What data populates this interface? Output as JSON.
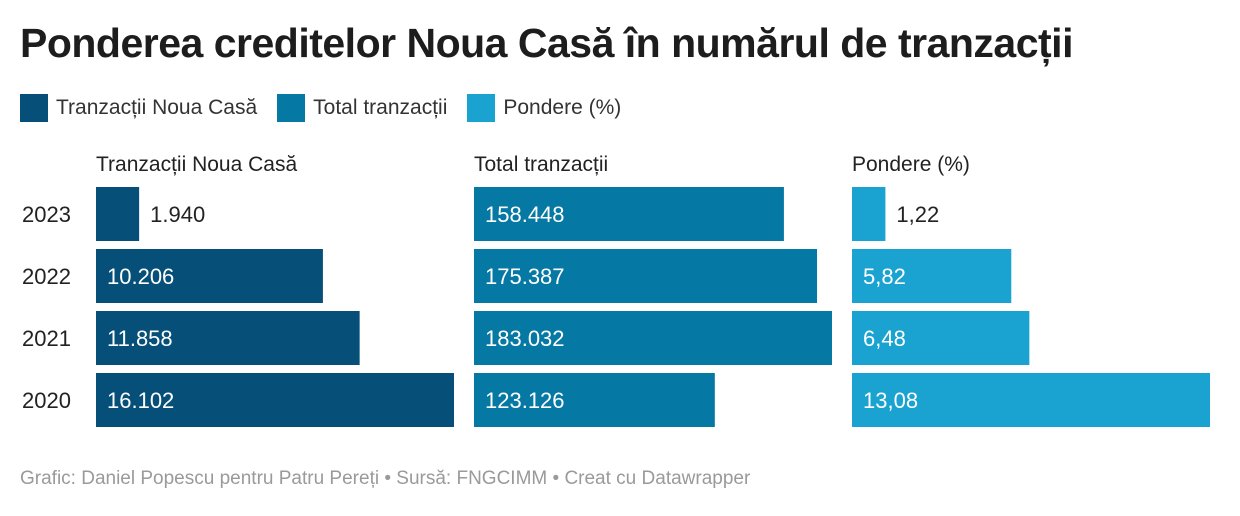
{
  "title": "Ponderea creditelor Noua Casă în numărul de tranzacții",
  "legend": [
    {
      "label": "Tranzacții Noua Casă",
      "color": "#054f79"
    },
    {
      "label": "Total tranzacții",
      "color": "#0678a4"
    },
    {
      "label": "Pondere (%)",
      "color": "#1aa3d1"
    }
  ],
  "footer": "Grafic: Daniel Popescu pentru Patru Pereți • Sursă: FNGCIMM • Creat cu Datawrapper",
  "chart_data": {
    "type": "bar",
    "orientation": "horizontal",
    "categories": [
      "2023",
      "2022",
      "2021",
      "2020"
    ],
    "series": [
      {
        "name": "Tranzacții Noua Casă",
        "values": [
          1940,
          10206,
          11858,
          16102
        ],
        "labels": [
          "1.940",
          "10.206",
          "11.858",
          "16.102"
        ],
        "color": "#054f79",
        "max": 16102
      },
      {
        "name": "Total tranzacții",
        "values": [
          158448,
          175387,
          183032,
          123126
        ],
        "labels": [
          "158.448",
          "175.387",
          "183.032",
          "123.126"
        ],
        "color": "#0678a4",
        "max": 183032
      },
      {
        "name": "Pondere (%)",
        "values": [
          1.22,
          5.82,
          6.48,
          13.08
        ],
        "labels": [
          "1,22",
          "5,82",
          "6,48",
          "13,08"
        ],
        "color": "#1aa3d1",
        "max": 13.08
      }
    ],
    "legend_position": "top-left",
    "grid": false
  }
}
